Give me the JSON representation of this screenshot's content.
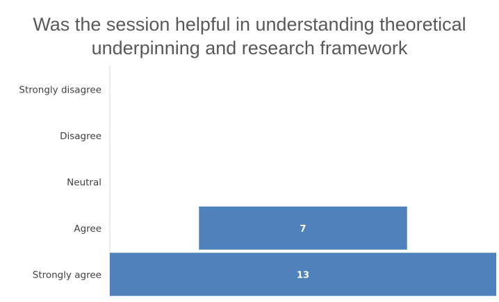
{
  "chart_data": {
    "type": "bar",
    "orientation": "horizontal",
    "title": "Was the session helpful in understanding theoretical\nunderpinning and research  framework",
    "categories": [
      "Strongly disagree",
      "Disagree",
      "Neutral",
      "Agree",
      "Strongly agree"
    ],
    "values": [
      0,
      0,
      0,
      7,
      13
    ],
    "data_labels": [
      "",
      "",
      "",
      "7",
      "13"
    ],
    "bar_color": "#4f81bd",
    "title_color": "#595959",
    "label_color": "#404040",
    "centered_bars": true,
    "grid": false,
    "legend": "none"
  }
}
